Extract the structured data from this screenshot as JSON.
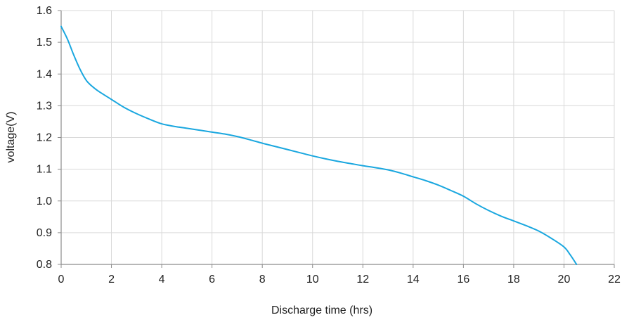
{
  "chart_data": {
    "type": "line",
    "title": "",
    "xlabel": "Discharge time (hrs)",
    "ylabel": "voltage(V)",
    "xlim": [
      0,
      22
    ],
    "ylim": [
      0.8,
      1.6
    ],
    "x_ticks": [
      0,
      2,
      4,
      6,
      8,
      10,
      12,
      14,
      16,
      18,
      20,
      22
    ],
    "y_ticks": [
      0.8,
      0.9,
      1.0,
      1.1,
      1.2,
      1.3,
      1.4,
      1.5,
      1.6
    ],
    "x_tick_labels": [
      "0",
      "2",
      "4",
      "6",
      "8",
      "10",
      "12",
      "14",
      "16",
      "18",
      "20",
      "22"
    ],
    "y_tick_labels": [
      "0.8",
      "0.9",
      "1.0",
      "1.1",
      "1.2",
      "1.3",
      "1.4",
      "1.5",
      "1.6"
    ],
    "grid": true,
    "legend": "none",
    "colors": {
      "line": "#1aa7df",
      "grid": "#d9d9d9",
      "axis": "#8c8c8c",
      "text": "#222222"
    },
    "series": [
      {
        "x": [
          0,
          0.25,
          0.5,
          0.75,
          1.0,
          1.25,
          1.5,
          2.0,
          2.5,
          3.0,
          3.5,
          4.0,
          4.5,
          5.0,
          5.5,
          6.0,
          6.5,
          7.0,
          7.5,
          8.0,
          8.5,
          9.0,
          9.5,
          10.0,
          10.5,
          11.0,
          11.5,
          12.0,
          12.5,
          13.0,
          13.5,
          14.0,
          14.5,
          15.0,
          15.5,
          16.0,
          16.5,
          17.0,
          17.5,
          18.0,
          18.5,
          19.0,
          19.5,
          20.0,
          20.25,
          20.5
        ],
        "y": [
          1.55,
          1.51,
          1.46,
          1.415,
          1.38,
          1.36,
          1.345,
          1.32,
          1.295,
          1.275,
          1.258,
          1.243,
          1.235,
          1.229,
          1.223,
          1.217,
          1.211,
          1.203,
          1.193,
          1.182,
          1.172,
          1.162,
          1.152,
          1.142,
          1.133,
          1.125,
          1.118,
          1.111,
          1.105,
          1.098,
          1.088,
          1.076,
          1.064,
          1.05,
          1.033,
          1.015,
          0.991,
          0.97,
          0.952,
          0.937,
          0.922,
          0.905,
          0.882,
          0.855,
          0.83,
          0.8
        ]
      }
    ]
  }
}
